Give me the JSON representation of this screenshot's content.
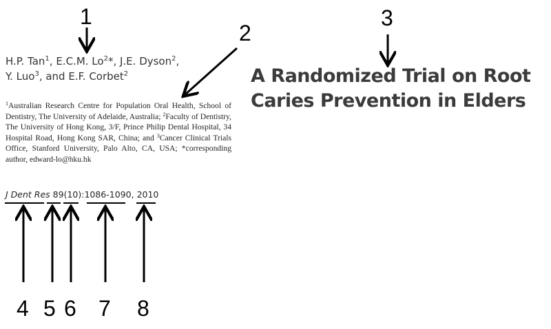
{
  "authors": {
    "line1_parts": [
      "H.P. Tan",
      "1",
      ", E.C.M. Lo",
      "2",
      "*, J.E. Dyson",
      "2",
      ","
    ],
    "line2_parts": [
      "Y. Luo",
      "3",
      ", and E.F. Corbet",
      "2"
    ]
  },
  "affiliations": {
    "sup1": "1",
    "part1": "Australian Research Centre for Population Oral Health, School of Dentistry, The University of Adelaide, Australia;",
    "sup2": "2",
    "part2": "Faculty of Dentistry, The University of Hong Kong, 3/F, Prince Philip Dental Hospital, 34 Hospital Road, Hong Kong SAR, China; and",
    "sup3": "3",
    "part3": "Cancer Clinical Trials Office, Stanford University, Palo Alto, CA, USA; *corresponding author, edward-lo@hku.hk"
  },
  "title": {
    "line1": "A Randomized Trial on Root",
    "line2": "Caries Prevention in Elders"
  },
  "citation": {
    "journal": "J Dent Res",
    "volume": "89",
    "issue": "(10)",
    "pages": ":1086-1090",
    "sep": ",",
    "year": "2010"
  },
  "callouts": [
    "1",
    "2",
    "3",
    "4",
    "5",
    "6",
    "7",
    "8"
  ]
}
